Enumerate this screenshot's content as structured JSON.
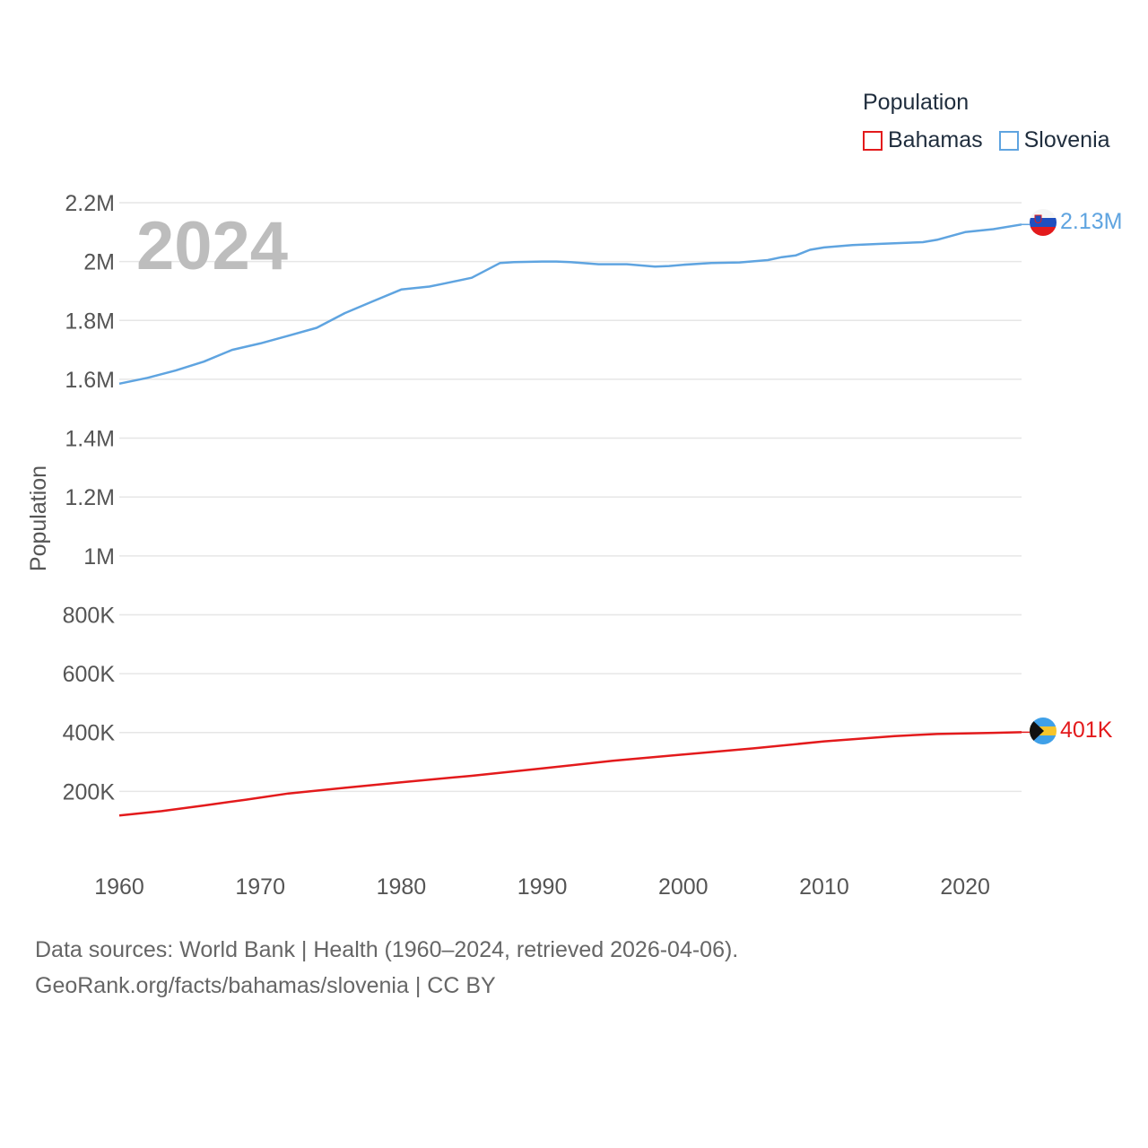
{
  "legend": {
    "title": "Population",
    "items": [
      {
        "name": "Bahamas",
        "color": "#e31a1c"
      },
      {
        "name": "Slovenia",
        "color": "#5fa4e0"
      }
    ]
  },
  "footer": {
    "line1": "Data sources: World Bank | Health (1960–2024, retrieved 2026-04-06).",
    "line2": "GeoRank.org/facts/bahamas/slovenia | CC BY"
  },
  "chart_data": {
    "type": "line",
    "title": "Population",
    "year_label": "2024",
    "xlabel": "",
    "ylabel": "Population",
    "xlim": [
      1960,
      2024
    ],
    "ylim": [
      0,
      2200000
    ],
    "x_ticks": [
      1960,
      1970,
      1980,
      1990,
      2000,
      2010,
      2020
    ],
    "y_ticks": [
      {
        "value": 200000,
        "label": "200K"
      },
      {
        "value": 400000,
        "label": "400K"
      },
      {
        "value": 600000,
        "label": "600K"
      },
      {
        "value": 800000,
        "label": "800K"
      },
      {
        "value": 1000000,
        "label": "1M"
      },
      {
        "value": 1200000,
        "label": "1.2M"
      },
      {
        "value": 1400000,
        "label": "1.4M"
      },
      {
        "value": 1600000,
        "label": "1.6M"
      },
      {
        "value": 1800000,
        "label": "1.8M"
      },
      {
        "value": 2000000,
        "label": "2M"
      },
      {
        "value": 2200000,
        "label": "2.2M"
      }
    ],
    "series": [
      {
        "name": "Slovenia",
        "color": "#5fa4e0",
        "end_label": "2.13M",
        "x": [
          1960,
          1962,
          1964,
          1966,
          1968,
          1970,
          1972,
          1974,
          1976,
          1978,
          1980,
          1982,
          1983,
          1985,
          1987,
          1988,
          1990,
          1991,
          1992,
          1994,
          1996,
          1998,
          1999,
          2000,
          2002,
          2004,
          2006,
          2007,
          2008,
          2009,
          2010,
          2012,
          2014,
          2016,
          2017,
          2018,
          2020,
          2022,
          2024
        ],
        "values": [
          1585000,
          1605000,
          1630000,
          1660000,
          1700000,
          1722000,
          1748000,
          1775000,
          1825000,
          1865000,
          1905000,
          1915000,
          1925000,
          1945000,
          1995000,
          1998000,
          2000000,
          2000000,
          1998000,
          1991000,
          1991000,
          1983000,
          1985000,
          1989000,
          1995000,
          1997000,
          2005000,
          2015000,
          2021000,
          2040000,
          2048000,
          2056000,
          2060000,
          2064000,
          2066000,
          2074000,
          2100000,
          2110000,
          2126000
        ]
      },
      {
        "name": "Bahamas",
        "color": "#e31a1c",
        "end_label": "401K",
        "x": [
          1960,
          1963,
          1966,
          1969,
          1972,
          1976,
          1980,
          1985,
          1990,
          1995,
          2000,
          2005,
          2010,
          2015,
          2018,
          2020,
          2022,
          2024
        ],
        "values": [
          118000,
          133000,
          152000,
          172000,
          193000,
          212000,
          231000,
          253000,
          278000,
          304000,
          325000,
          346000,
          370000,
          388000,
          395000,
          397000,
          399000,
          401000
        ]
      }
    ]
  }
}
